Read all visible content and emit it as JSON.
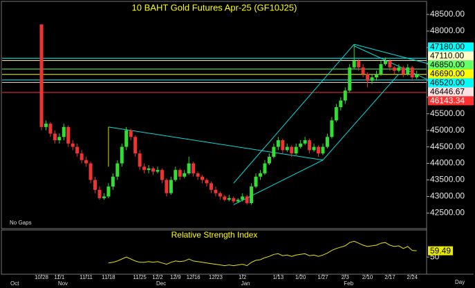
{
  "chart_data": {
    "type": "candlestick",
    "title": "10 BAHT Gold Futures Apr-25 (GF10J25)",
    "note": "No Gaps",
    "period": "Day",
    "color_up": "#33dd33",
    "color_down": "#ee3333",
    "ylim": [
      42050,
      48875
    ],
    "yticks": [
      {
        "value": 48500,
        "label": "48500.00"
      },
      {
        "value": 48000,
        "label": "48000.00"
      },
      {
        "value": 47500,
        "label": "47500.00"
      },
      {
        "value": 47000,
        "label": "47000.00"
      },
      {
        "value": 46500,
        "label": "46500.00"
      },
      {
        "value": 46000,
        "label": "46000.00"
      },
      {
        "value": 45500,
        "label": "45500.00"
      },
      {
        "value": 45000,
        "label": "45000.00"
      },
      {
        "value": 44500,
        "label": "44500.00"
      },
      {
        "value": 44000,
        "label": "44000.00"
      },
      {
        "value": 43500,
        "label": "43500.00"
      },
      {
        "value": 43000,
        "label": "43000.00"
      },
      {
        "value": 42500,
        "label": "42500.00"
      }
    ],
    "categories": [
      "10/28",
      null,
      null,
      null,
      "11/1",
      null,
      null,
      null,
      null,
      null,
      "11/11",
      null,
      null,
      null,
      null,
      "11/18",
      null,
      null,
      null,
      null,
      null,
      null,
      "11/25",
      null,
      null,
      null,
      "12/2",
      null,
      null,
      null,
      "12/9",
      null,
      null,
      null,
      "12/16",
      null,
      null,
      null,
      null,
      "12/23",
      null,
      null,
      null,
      null,
      null,
      "1/2",
      null,
      null,
      null,
      null,
      null,
      null,
      null,
      "1/13",
      null,
      null,
      null,
      null,
      "1/20",
      null,
      null,
      null,
      null,
      "1/27",
      null,
      null,
      null,
      null,
      "2/3",
      null,
      null,
      null,
      null,
      "2/10",
      null,
      null,
      null,
      null,
      "2/17",
      null,
      null,
      null,
      null,
      "2/24",
      null
    ],
    "months": [
      "Oct",
      null,
      null,
      null,
      "Nov",
      null,
      null,
      null,
      null,
      null,
      null,
      null,
      null,
      null,
      null,
      null,
      null,
      null,
      null,
      null,
      null,
      null,
      null,
      null,
      null,
      null,
      "Dec",
      null,
      null,
      null,
      null,
      null,
      null,
      null,
      null,
      null,
      null,
      null,
      null,
      null,
      null,
      null,
      null,
      null,
      null,
      "Jan",
      null,
      null,
      null,
      null,
      null,
      null,
      null,
      null,
      null,
      null,
      null,
      null,
      null,
      null,
      null,
      null,
      null,
      null,
      null,
      null,
      null,
      null,
      "Feb",
      null,
      null,
      null,
      null,
      null,
      null,
      null,
      null,
      null,
      null,
      null,
      null,
      null,
      null,
      null,
      null
    ],
    "candles": [
      [
        48200,
        48200,
        45000,
        45100
      ],
      [
        45100,
        45300,
        45000,
        45200
      ],
      [
        45200,
        45250,
        44800,
        44900
      ],
      [
        44900,
        45000,
        44600,
        44700
      ],
      [
        44700,
        44900,
        44600,
        44800
      ],
      [
        44800,
        45200,
        44700,
        45100
      ],
      [
        45100,
        45150,
        44500,
        44600
      ],
      [
        44600,
        44700,
        44400,
        44500
      ],
      [
        44500,
        44600,
        44200,
        44300
      ],
      [
        44300,
        44400,
        44000,
        44100
      ],
      [
        44100,
        44200,
        43900,
        44000
      ],
      [
        44000,
        44050,
        43400,
        43500
      ],
      [
        43500,
        43600,
        43100,
        43200
      ],
      [
        43200,
        43300,
        42900,
        42950
      ],
      [
        42950,
        43100,
        42900,
        43000
      ],
      [
        43000,
        43400,
        42950,
        43300
      ],
      [
        43300,
        43700,
        43200,
        43600
      ],
      [
        43600,
        44100,
        43500,
        44000
      ],
      [
        44000,
        44600,
        43900,
        44500
      ],
      [
        44500,
        45100,
        44400,
        45000
      ],
      [
        45000,
        45050,
        44700,
        44800
      ],
      [
        44800,
        44850,
        44200,
        44300
      ],
      [
        44300,
        44400,
        43800,
        43900
      ],
      [
        43900,
        44000,
        43700,
        43800
      ],
      [
        43800,
        43950,
        43700,
        43850
      ],
      [
        43850,
        43900,
        43650,
        43750
      ],
      [
        43750,
        43900,
        43700,
        43800
      ],
      [
        43800,
        43850,
        43400,
        43500
      ],
      [
        43500,
        43550,
        43000,
        43100
      ],
      [
        43100,
        43600,
        43050,
        43500
      ],
      [
        43500,
        43900,
        43450,
        43800
      ],
      [
        43800,
        43850,
        43500,
        43600
      ],
      [
        43600,
        43800,
        43550,
        43700
      ],
      [
        43700,
        44200,
        43650,
        44000
      ],
      [
        44000,
        44050,
        43600,
        43700
      ],
      [
        43700,
        43750,
        43500,
        43600
      ],
      [
        43600,
        43650,
        43400,
        43500
      ],
      [
        43500,
        43550,
        43300,
        43400
      ],
      [
        43400,
        43450,
        43100,
        43200
      ],
      [
        43200,
        43300,
        43000,
        43100
      ],
      [
        43100,
        43150,
        42900,
        43000
      ],
      [
        43000,
        43050,
        42850,
        42900
      ],
      [
        42900,
        43050,
        42850,
        42950
      ],
      [
        42950,
        43000,
        42800,
        42850
      ],
      [
        42850,
        42950,
        42800,
        42900
      ],
      [
        42900,
        43100,
        42850,
        43000
      ],
      [
        43000,
        43050,
        42750,
        42800
      ],
      [
        42800,
        43400,
        42750,
        43300
      ],
      [
        43300,
        43700,
        43250,
        43600
      ],
      [
        43600,
        43800,
        43500,
        43700
      ],
      [
        43700,
        44100,
        43650,
        44000
      ],
      [
        44000,
        44300,
        43950,
        44200
      ],
      [
        44200,
        44600,
        44150,
        44500
      ],
      [
        44500,
        44800,
        44400,
        44700
      ],
      [
        44700,
        44750,
        44300,
        44400
      ],
      [
        44400,
        44600,
        44350,
        44500
      ],
      [
        44500,
        44550,
        44200,
        44300
      ],
      [
        44300,
        44600,
        44250,
        44500
      ],
      [
        44500,
        44700,
        44450,
        44600
      ],
      [
        44600,
        44800,
        44550,
        44700
      ],
      [
        44700,
        44750,
        44300,
        44400
      ],
      [
        44400,
        44600,
        44350,
        44500
      ],
      [
        44500,
        44550,
        44200,
        44300
      ],
      [
        44300,
        44600,
        44250,
        44500
      ],
      [
        44500,
        44900,
        44450,
        44800
      ],
      [
        44800,
        45400,
        44750,
        45300
      ],
      [
        45300,
        45800,
        45250,
        45700
      ],
      [
        45700,
        46000,
        45600,
        45900
      ],
      [
        45900,
        46300,
        45800,
        46200
      ],
      [
        46200,
        47000,
        46150,
        46900
      ],
      [
        46900,
        47600,
        46850,
        47100
      ],
      [
        47100,
        47150,
        46800,
        46900
      ],
      [
        46900,
        47000,
        46600,
        46700
      ],
      [
        46700,
        46750,
        46300,
        46500
      ],
      [
        46500,
        46700,
        46400,
        46600
      ],
      [
        46600,
        46800,
        46500,
        46700
      ],
      [
        46700,
        47100,
        46650,
        47000
      ],
      [
        47000,
        47200,
        46950,
        47100
      ],
      [
        47100,
        47150,
        46800,
        46900
      ],
      [
        46900,
        46950,
        46700,
        46800
      ],
      [
        46800,
        47000,
        46750,
        46900
      ],
      [
        46900,
        46950,
        46600,
        46700
      ],
      [
        46700,
        47000,
        46650,
        46900
      ],
      [
        46900,
        46950,
        46500,
        46600
      ],
      [
        46600,
        46800,
        46550,
        46690
      ]
    ],
    "levels": [
      {
        "value": 47180,
        "label": "47180.00",
        "color": "#00ffff"
      },
      {
        "value": 47110,
        "label": "47110.00",
        "color": "#ffffc8"
      },
      {
        "value": 46850,
        "label": "46850.00",
        "color": "#66ff66"
      },
      {
        "value": 46690,
        "label": "46690.00",
        "color": "#ffff00"
      },
      {
        "value": 46520,
        "label": "46520.00",
        "color": "#00ffff"
      },
      {
        "value": 46446.67,
        "label": "46446.67",
        "color": "#ffe0e0"
      },
      {
        "value": 46143.34,
        "label": "46143.34",
        "color": "#ff3030"
      }
    ],
    "drawings": [
      {
        "color": "#00e0e0",
        "points": [
          [
            15,
            45100
          ],
          [
            63,
            44100
          ]
        ]
      },
      {
        "color": "#e0e000",
        "points": [
          [
            15,
            45100
          ],
          [
            15,
            43900
          ]
        ]
      },
      {
        "color": "#00e0e0",
        "points": [
          [
            43,
            43400
          ],
          [
            70,
            47600
          ]
        ]
      },
      {
        "color": "#00e0e0",
        "points": [
          [
            43,
            42750
          ],
          [
            63,
            44100
          ]
        ]
      },
      {
        "color": "#00e0e0",
        "points": [
          [
            63,
            44100
          ],
          [
            80,
            46700
          ]
        ]
      },
      {
        "color": "#00e0e0",
        "points": [
          [
            70,
            47600
          ],
          [
            87,
            47000
          ]
        ]
      },
      {
        "color": "#00e0e0",
        "points": [
          [
            70,
            47550
          ],
          [
            87,
            46500
          ]
        ]
      }
    ],
    "rsi": {
      "name": "Relative Strength Index",
      "color": "#e8e800",
      "ylim": [
        25,
        90
      ],
      "yticks": [
        50
      ],
      "values": [
        null,
        null,
        null,
        null,
        null,
        null,
        null,
        null,
        null,
        null,
        null,
        null,
        null,
        null,
        null,
        41,
        42,
        44,
        47,
        50,
        47,
        44,
        42,
        42,
        43,
        42,
        43,
        41,
        39,
        42,
        44,
        43,
        44,
        47,
        44,
        43,
        42,
        41,
        40,
        39,
        38,
        37,
        38,
        37,
        38,
        39,
        37,
        42,
        45,
        46,
        49,
        51,
        54,
        55,
        52,
        53,
        51,
        53,
        54,
        55,
        52,
        53,
        51,
        53,
        56,
        60,
        63,
        65,
        67,
        72,
        74,
        71,
        68,
        66,
        67,
        68,
        71,
        72,
        68,
        66,
        67,
        63,
        66,
        60,
        59.49
      ]
    }
  }
}
